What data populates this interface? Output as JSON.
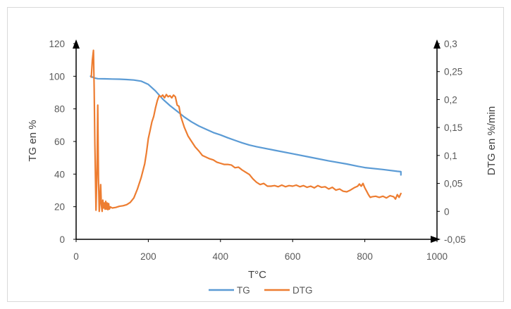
{
  "chart_data": {
    "type": "line",
    "title": "",
    "xlabel": "T°C",
    "ylabel_left": "TG en %",
    "ylabel_right": "DTG en %/min",
    "x_ticks": [
      "0",
      "200",
      "400",
      "600",
      "800",
      "1000"
    ],
    "y_left_ticks": [
      "0",
      "20",
      "40",
      "60",
      "80",
      "100",
      "120"
    ],
    "y_right_ticks": [
      "-0,05",
      "0",
      "0,05",
      "0,1",
      "0,15",
      "0,2",
      "0,25",
      "0,3"
    ],
    "xlim": [
      0,
      1000
    ],
    "ylim_left": [
      0,
      120
    ],
    "ylim_right": [
      -0.05,
      0.3
    ],
    "grid": false,
    "legend_position": "bottom",
    "series": [
      {
        "name": "TG",
        "axis": "left",
        "color": "#5B9BD5",
        "x": [
          40,
          50,
          60,
          80,
          100,
          120,
          140,
          160,
          180,
          200,
          220,
          240,
          260,
          280,
          300,
          320,
          340,
          360,
          380,
          400,
          420,
          440,
          460,
          480,
          500,
          550,
          600,
          650,
          700,
          750,
          780,
          800,
          850,
          890,
          900,
          900
        ],
        "y": [
          100,
          99,
          98.5,
          98.4,
          98.3,
          98.2,
          98,
          97.7,
          97,
          95,
          91,
          86,
          82,
          78.5,
          75,
          72,
          69.5,
          67.5,
          65.5,
          64,
          62.3,
          60.7,
          59.2,
          57.8,
          56.8,
          54.6,
          52.5,
          50.3,
          48.1,
          46.2,
          44.8,
          44,
          42.8,
          41.7,
          41.5,
          39.5
        ]
      },
      {
        "name": "DTG",
        "axis": "right",
        "color": "#ED7D31",
        "x": [
          42,
          45,
          48,
          50,
          52,
          55,
          58,
          60,
          62,
          64,
          66,
          68,
          70,
          72,
          74,
          76,
          78,
          80,
          82,
          84,
          86,
          88,
          90,
          92,
          95,
          100,
          110,
          120,
          130,
          140,
          150,
          160,
          170,
          180,
          190,
          195,
          200,
          205,
          210,
          215,
          220,
          225,
          230,
          235,
          240,
          245,
          250,
          255,
          260,
          265,
          270,
          275,
          280,
          285,
          290,
          295,
          300,
          310,
          320,
          330,
          340,
          350,
          360,
          370,
          380,
          390,
          400,
          410,
          420,
          430,
          440,
          450,
          460,
          470,
          480,
          490,
          500,
          510,
          520,
          530,
          540,
          550,
          560,
          570,
          580,
          590,
          600,
          610,
          620,
          630,
          640,
          650,
          660,
          670,
          680,
          690,
          700,
          710,
          720,
          730,
          740,
          750,
          760,
          770,
          780,
          785,
          790,
          795,
          800,
          805,
          810,
          815,
          820,
          830,
          840,
          850,
          860,
          870,
          880,
          885,
          890,
          895,
          900
        ],
        "y": [
          0.24,
          0.27,
          0.288,
          0.22,
          0.12,
          0.002,
          0.08,
          0.19,
          0.06,
          0.0,
          0.02,
          0.048,
          0.012,
          0.0,
          0.02,
          0.006,
          0.015,
          0.004,
          0.018,
          0.004,
          0.015,
          0.003,
          0.014,
          0.004,
          0.008,
          0.006,
          0.007,
          0.009,
          0.01,
          0.012,
          0.016,
          0.024,
          0.04,
          0.06,
          0.085,
          0.105,
          0.13,
          0.145,
          0.16,
          0.17,
          0.185,
          0.198,
          0.207,
          0.205,
          0.208,
          0.203,
          0.209,
          0.205,
          0.207,
          0.203,
          0.208,
          0.205,
          0.19,
          0.188,
          0.17,
          0.16,
          0.15,
          0.135,
          0.125,
          0.115,
          0.108,
          0.1,
          0.097,
          0.094,
          0.092,
          0.088,
          0.086,
          0.084,
          0.084,
          0.083,
          0.078,
          0.079,
          0.074,
          0.07,
          0.066,
          0.058,
          0.052,
          0.048,
          0.05,
          0.045,
          0.045,
          0.046,
          0.044,
          0.047,
          0.044,
          0.046,
          0.045,
          0.047,
          0.044,
          0.046,
          0.043,
          0.045,
          0.042,
          0.046,
          0.043,
          0.044,
          0.04,
          0.043,
          0.038,
          0.04,
          0.036,
          0.035,
          0.038,
          0.042,
          0.045,
          0.049,
          0.045,
          0.05,
          0.042,
          0.036,
          0.03,
          0.025,
          0.026,
          0.027,
          0.025,
          0.027,
          0.024,
          0.028,
          0.026,
          0.022,
          0.03,
          0.025,
          0.032
        ]
      }
    ]
  }
}
